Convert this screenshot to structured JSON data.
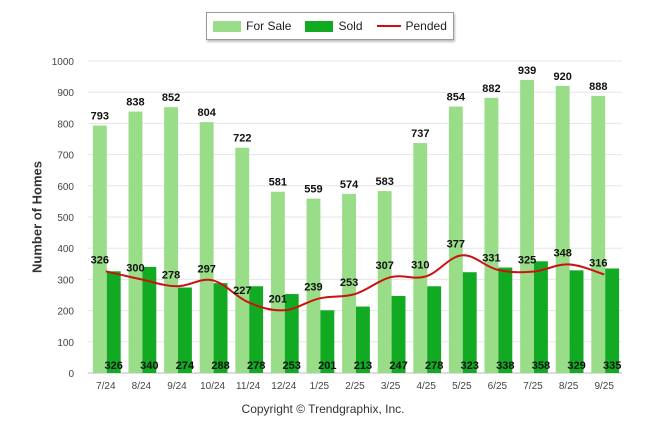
{
  "chart_data": {
    "type": "bar",
    "title": "",
    "xlabel": "",
    "ylabel": "Number of Homes",
    "ylim": [
      0,
      1000
    ],
    "yticks": [
      0,
      100,
      200,
      300,
      400,
      500,
      600,
      700,
      800,
      900,
      1000
    ],
    "grid": true,
    "legend_position": "top-center",
    "categories": [
      "7/24",
      "8/24",
      "9/24",
      "10/24",
      "11/24",
      "12/24",
      "1/25",
      "2/25",
      "3/25",
      "4/25",
      "5/25",
      "6/25",
      "7/25",
      "8/25",
      "9/25"
    ],
    "series": [
      {
        "name": "For Sale",
        "kind": "bar",
        "color": "#99dd88",
        "values": [
          793,
          838,
          852,
          804,
          722,
          581,
          559,
          574,
          583,
          737,
          854,
          882,
          939,
          920,
          888
        ]
      },
      {
        "name": "Sold",
        "kind": "bar",
        "color": "#11aa22",
        "values": [
          326,
          340,
          274,
          288,
          278,
          253,
          201,
          213,
          247,
          278,
          323,
          338,
          358,
          329,
          335
        ]
      },
      {
        "name": "Pended",
        "kind": "line",
        "color": "#cc1111",
        "values": [
          326,
          300,
          278,
          297,
          227,
          201,
          239,
          253,
          307,
          310,
          377,
          331,
          325,
          348,
          316
        ]
      }
    ]
  },
  "copyright": "Copyright © Trendgraphix, Inc."
}
